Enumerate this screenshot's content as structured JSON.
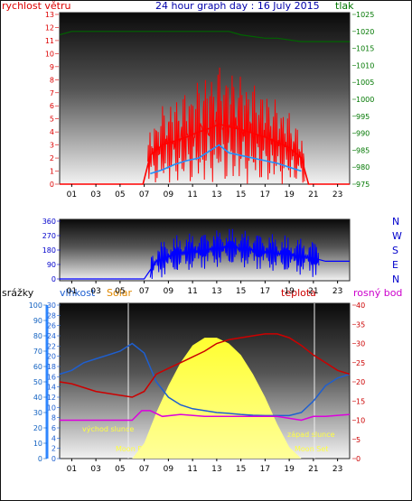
{
  "title": "24 hour graph day : 16 July 2015",
  "colors": {
    "wind": "#ff0000",
    "gust_avg": "#1e90ff",
    "pressure": "#006400",
    "direction": "#0000ff",
    "humidity": "#1e5fd0",
    "temp": "#cc0000",
    "dew": "#dd00dd",
    "solar": "#ffff00",
    "rain": "#1060c0",
    "title": "#0000aa",
    "right_axis_green": "#007700"
  },
  "labels": {
    "wind_speed": "rychlost větru",
    "pressure": "tlak",
    "rain": "srážky",
    "humidity": "vlhkost",
    "solar": "Solar",
    "temp": "teplota",
    "dew": "rosný bod",
    "sunrise": "východ slunce",
    "sunset": "západ slunce",
    "moonrise": "Moon Rise",
    "moonset": "Moon Set"
  },
  "compass": [
    "N",
    "W",
    "S",
    "E",
    "N"
  ],
  "x_ticks": [
    "01",
    "03",
    "05",
    "07",
    "09",
    "11",
    "13",
    "15",
    "17",
    "19",
    "21",
    "23"
  ],
  "chart_data": [
    {
      "type": "line",
      "title": "24 hour graph day : 16 July 2015",
      "x_label": "hour",
      "xlim": [
        0,
        24
      ],
      "y_left": {
        "label": "rychlost větru",
        "lim": [
          0,
          13
        ],
        "ticks": [
          0,
          1,
          2,
          3,
          4,
          5,
          6,
          7,
          8,
          9,
          10,
          11,
          12,
          13
        ]
      },
      "y_right": {
        "label": "tlak",
        "lim": [
          975,
          1025
        ],
        "ticks": [
          975,
          980,
          985,
          990,
          995,
          1000,
          1005,
          1010,
          1015,
          1020,
          1025
        ]
      },
      "series": [
        {
          "name": "rychlost větru",
          "axis": "left",
          "x": [
            0,
            6.9,
            7.5,
            8.5,
            9.5,
            10.5,
            11.5,
            12.5,
            13.2,
            14,
            15,
            16,
            17,
            18,
            19,
            20,
            20.6,
            24
          ],
          "y": [
            0,
            0,
            2.2,
            3.0,
            3.3,
            3.6,
            4.0,
            4.3,
            4.6,
            4.4,
            4.2,
            3.9,
            3.6,
            3.2,
            2.8,
            2.0,
            0,
            0
          ]
        },
        {
          "axis": "left",
          "x": [
            7.5,
            8.5,
            9.5,
            10.5,
            11.5,
            12.5,
            13.2,
            14,
            15,
            16,
            17,
            18,
            19,
            20
          ],
          "y": [
            0.8,
            1.1,
            1.5,
            1.8,
            2.0,
            2.6,
            3.0,
            2.4,
            2.2,
            2.0,
            1.8,
            1.6,
            1.3,
            1.0
          ]
        },
        {
          "name": "tlak",
          "axis": "right",
          "x": [
            0,
            1,
            14,
            15,
            17,
            18,
            20,
            22,
            24
          ],
          "y": [
            1019,
            1020,
            1020,
            1019,
            1018,
            1018,
            1017,
            1017,
            1017
          ]
        }
      ]
    },
    {
      "type": "line",
      "xlim": [
        0,
        24
      ],
      "y_left": {
        "ticks": [
          0,
          90,
          180,
          270,
          360
        ],
        "lim": [
          0,
          360
        ]
      },
      "y_right": {
        "ticks": [
          "N",
          "W",
          "S",
          "E",
          "N"
        ]
      },
      "series": [
        {
          "axis": "left",
          "x": [
            0,
            7,
            8,
            9,
            10,
            11,
            12,
            13,
            14,
            15,
            16,
            17,
            18,
            19,
            20,
            21,
            22,
            24
          ],
          "y": [
            0,
            0,
            110,
            140,
            160,
            170,
            180,
            190,
            200,
            190,
            180,
            170,
            160,
            150,
            140,
            130,
            110,
            110
          ]
        }
      ]
    },
    {
      "type": "line",
      "xlim": [
        0,
        24
      ],
      "y_rain": {
        "label": "srážky",
        "lim": [
          0,
          100
        ],
        "ticks": [
          0,
          10,
          20,
          30,
          40,
          50,
          60,
          70,
          80,
          90,
          100
        ]
      },
      "y_left": {
        "label": "vlhkost",
        "lim": [
          0,
          30
        ],
        "ticks": [
          0,
          2,
          4,
          6,
          8,
          10,
          12,
          14,
          16,
          18,
          20,
          22,
          24,
          26,
          28,
          30
        ]
      },
      "y_right": {
        "label": "teplota",
        "lim": [
          0,
          40
        ],
        "ticks": [
          0,
          5,
          10,
          15,
          20,
          25,
          30,
          35,
          40
        ]
      },
      "annotations": [
        "východ slunce",
        "západ slunce",
        "Moon Rise",
        "Moon Set"
      ],
      "series": [
        {
          "name": "vlhkost",
          "axis": "right",
          "x": [
            0,
            1,
            2,
            3,
            4,
            5,
            6,
            7,
            8,
            9,
            10,
            11,
            12,
            13,
            14,
            15,
            16,
            17,
            18,
            19,
            20,
            21,
            22,
            23,
            24
          ],
          "y": [
            22.0,
            23.0,
            25.0,
            26.0,
            27.0,
            28.0,
            30.0,
            27.5,
            20.0,
            16.0,
            14.0,
            13.0,
            12.5,
            12.0,
            11.8,
            11.5,
            11.3,
            11.2,
            11.2,
            11.2,
            12.0,
            15.0,
            19.0,
            21.0,
            22.0
          ]
        },
        {
          "name": "teplota",
          "axis": "right",
          "x": [
            0,
            1,
            2,
            3,
            4,
            5,
            6,
            7,
            8,
            9,
            10,
            11,
            12,
            13,
            14,
            15,
            16,
            17,
            18,
            19,
            20,
            21,
            22,
            23,
            24
          ],
          "y": [
            20.0,
            19.5,
            18.5,
            17.5,
            17.0,
            16.5,
            16.0,
            17.5,
            22.0,
            23.5,
            25.0,
            26.5,
            28.0,
            30.0,
            31.0,
            31.5,
            32.0,
            32.5,
            32.5,
            31.5,
            29.5,
            27.0,
            25.0,
            23.0,
            22.0
          ]
        },
        {
          "name": "rosný bod",
          "axis": "right",
          "x": [
            0,
            2,
            4,
            6,
            6.8,
            7.5,
            8.5,
            10,
            12,
            14,
            16,
            18,
            19,
            20,
            21,
            22,
            24
          ],
          "y": [
            10.0,
            10.0,
            10.0,
            10.0,
            12.5,
            12.5,
            11.0,
            11.5,
            11.0,
            11.0,
            11.0,
            11.0,
            10.5,
            10.0,
            11.0,
            11.0,
            11.5
          ]
        },
        {
          "name": "Solar",
          "axis": "right",
          "x": [
            6,
            7,
            8,
            9,
            10,
            11,
            12,
            13,
            14,
            15,
            16,
            17,
            18,
            19,
            20
          ],
          "y": [
            0,
            4,
            12,
            19,
            25,
            29.5,
            31.5,
            31.5,
            30.0,
            27.0,
            22.0,
            16.0,
            9.0,
            3.0,
            0
          ]
        }
      ]
    }
  ]
}
